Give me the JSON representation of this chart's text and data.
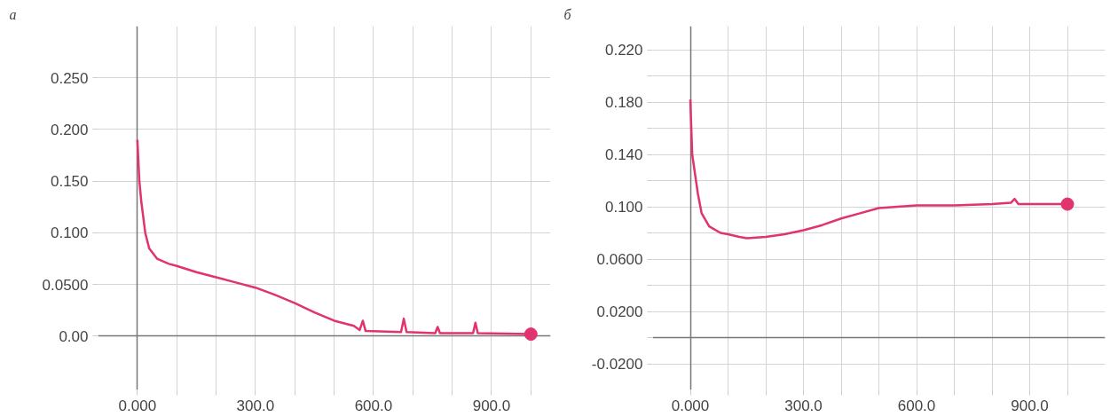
{
  "chart_data": [
    {
      "type": "line",
      "title": "а",
      "grid": true,
      "line_style": "solid",
      "xlim": [
        -100,
        1050
      ],
      "ylim": [
        -0.052,
        0.3
      ],
      "xticks": [
        {
          "value": 0,
          "label": "0.000"
        },
        {
          "value": 100,
          "label": null
        },
        {
          "value": 200,
          "label": null
        },
        {
          "value": 300,
          "label": "300.0"
        },
        {
          "value": 400,
          "label": null
        },
        {
          "value": 500,
          "label": null
        },
        {
          "value": 600,
          "label": "600.0"
        },
        {
          "value": 700,
          "label": null
        },
        {
          "value": 800,
          "label": null
        },
        {
          "value": 900,
          "label": "900.0"
        },
        {
          "value": 1000,
          "label": null
        }
      ],
      "yticks": [
        {
          "value": 0,
          "label": "0.00"
        },
        {
          "value": 0.05,
          "label": "0.0500"
        },
        {
          "value": 0.1,
          "label": "0.100"
        },
        {
          "value": 0.15,
          "label": "0.150"
        },
        {
          "value": 0.2,
          "label": "0.200"
        },
        {
          "value": 0.25,
          "label": "0.250"
        }
      ],
      "series": [
        {
          "color": "#e0336f",
          "x": [
            0,
            5,
            10,
            20,
            30,
            50,
            80,
            100,
            150,
            200,
            250,
            300,
            350,
            400,
            450,
            500,
            550,
            565,
            573,
            580,
            670,
            677,
            684,
            757,
            763,
            769,
            853,
            859,
            865,
            1000
          ],
          "values": [
            0.19,
            0.15,
            0.13,
            0.1,
            0.085,
            0.075,
            0.07,
            0.068,
            0.062,
            0.057,
            0.052,
            0.047,
            0.04,
            0.032,
            0.023,
            0.015,
            0.01,
            0.006,
            0.015,
            0.005,
            0.004,
            0.017,
            0.004,
            0.003,
            0.009,
            0.003,
            0.003,
            0.013,
            0.003,
            0.002
          ]
        },
        {
          "type": "scatter",
          "marker": "circle",
          "color": "#e0336f",
          "x": [
            1000
          ],
          "values": [
            0.002
          ]
        }
      ]
    },
    {
      "type": "line",
      "title": "б",
      "grid": true,
      "line_style": "solid",
      "xlim": [
        -100,
        1100
      ],
      "ylim": [
        -0.04,
        0.238
      ],
      "xticks": [
        {
          "value": 0,
          "label": "0.000"
        },
        {
          "value": 100,
          "label": null
        },
        {
          "value": 200,
          "label": null
        },
        {
          "value": 300,
          "label": "300.0"
        },
        {
          "value": 400,
          "label": null
        },
        {
          "value": 500,
          "label": null
        },
        {
          "value": 600,
          "label": "600.0"
        },
        {
          "value": 700,
          "label": null
        },
        {
          "value": 800,
          "label": null
        },
        {
          "value": 900,
          "label": "900.0"
        },
        {
          "value": 1000,
          "label": null
        }
      ],
      "yticks": [
        {
          "value": -0.02,
          "label": "-0.0200"
        },
        {
          "value": 0,
          "label": null
        },
        {
          "value": 0.02,
          "label": "0.0200"
        },
        {
          "value": 0.04,
          "label": null
        },
        {
          "value": 0.06,
          "label": "0.0600"
        },
        {
          "value": 0.08,
          "label": null
        },
        {
          "value": 0.1,
          "label": "0.100"
        },
        {
          "value": 0.12,
          "label": null
        },
        {
          "value": 0.14,
          "label": "0.140"
        },
        {
          "value": 0.16,
          "label": null
        },
        {
          "value": 0.18,
          "label": "0.180"
        },
        {
          "value": 0.2,
          "label": null
        },
        {
          "value": 0.22,
          "label": "0.220"
        }
      ],
      "series": [
        {
          "color": "#e0336f",
          "x": [
            0,
            5,
            10,
            20,
            30,
            50,
            80,
            100,
            130,
            150,
            200,
            250,
            300,
            350,
            400,
            450,
            500,
            550,
            600,
            700,
            800,
            850,
            860,
            870,
            1000
          ],
          "values": [
            0.182,
            0.14,
            0.13,
            0.11,
            0.095,
            0.085,
            0.08,
            0.079,
            0.077,
            0.076,
            0.077,
            0.079,
            0.082,
            0.086,
            0.091,
            0.095,
            0.099,
            0.1,
            0.101,
            0.101,
            0.102,
            0.103,
            0.106,
            0.102,
            0.102
          ]
        },
        {
          "type": "scatter",
          "marker": "circle",
          "color": "#e0336f",
          "x": [
            1000
          ],
          "values": [
            0.102
          ]
        }
      ]
    }
  ]
}
